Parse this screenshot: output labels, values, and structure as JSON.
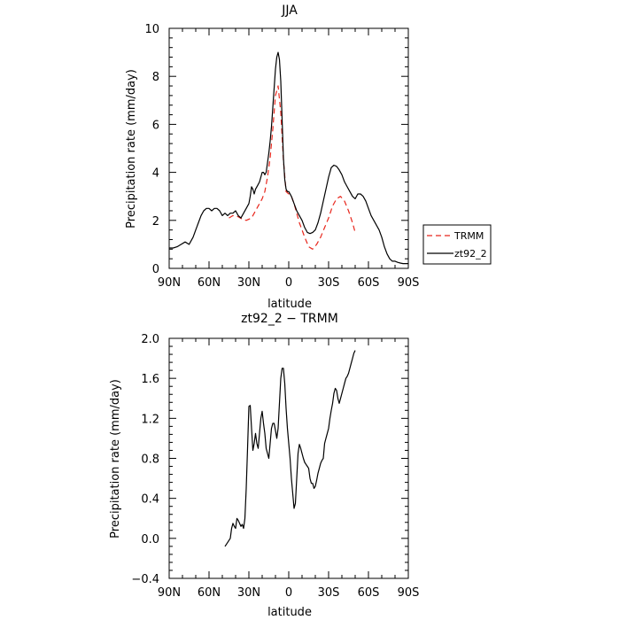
{
  "chart_data": [
    {
      "type": "line",
      "title": "JJA",
      "xlabel": "latitude",
      "ylabel": "Precipitation rate (mm/day)",
      "xlim": [
        90,
        -90
      ],
      "ylim": [
        0,
        10
      ],
      "x_ticks": [
        90,
        60,
        30,
        0,
        -30,
        -60,
        -90
      ],
      "x_tick_labels": [
        "90N",
        "60N",
        "30N",
        "0",
        "30S",
        "60S",
        "90S"
      ],
      "y_ticks": [
        0,
        2,
        4,
        6,
        8,
        10
      ],
      "y_tick_labels": [
        "0",
        "2",
        "4",
        "6",
        "8",
        "10"
      ],
      "grid": false,
      "legend": "outside-right",
      "series": [
        {
          "name": "TRMM",
          "color": "#e8261c",
          "dash": "dashed",
          "x": [
            45,
            42,
            38,
            35,
            32,
            28,
            25,
            22,
            20,
            18,
            16,
            14,
            12,
            10,
            8,
            6,
            4,
            2,
            0,
            -2,
            -4,
            -6,
            -8,
            -10,
            -12,
            -15,
            -18,
            -21,
            -24,
            -27,
            -30,
            -33,
            -36,
            -39,
            -42,
            -45,
            -48,
            -50
          ],
          "y": [
            2.1,
            2.2,
            2.15,
            2.05,
            2.0,
            2.1,
            2.4,
            2.7,
            2.9,
            3.2,
            3.8,
            4.6,
            5.8,
            7.2,
            7.6,
            6.5,
            4.5,
            3.2,
            3.1,
            3.0,
            2.7,
            2.3,
            1.9,
            1.6,
            1.3,
            0.9,
            0.8,
            1.0,
            1.3,
            1.7,
            2.1,
            2.6,
            2.9,
            3.0,
            2.8,
            2.4,
            1.9,
            1.5
          ]
        },
        {
          "name": "zt92_2",
          "color": "#000000",
          "dash": "solid",
          "x": [
            90,
            87,
            84,
            81,
            78,
            75,
            72,
            70,
            68,
            66,
            64,
            62,
            60,
            58,
            56,
            54,
            52,
            50,
            48,
            46,
            44,
            42,
            40,
            38,
            36,
            34,
            32,
            30,
            29,
            28,
            27,
            26,
            25,
            24,
            23,
            22,
            21,
            20,
            19,
            18,
            17,
            16,
            15,
            14,
            13,
            12,
            11,
            10,
            9,
            8,
            7,
            6,
            5,
            4,
            3,
            2,
            1,
            0,
            -2,
            -4,
            -6,
            -8,
            -10,
            -12,
            -14,
            -16,
            -18,
            -20,
            -22,
            -24,
            -26,
            -28,
            -30,
            -32,
            -34,
            -36,
            -38,
            -40,
            -42,
            -44,
            -46,
            -48,
            -50,
            -52,
            -54,
            -56,
            -58,
            -60,
            -62,
            -64,
            -66,
            -68,
            -70,
            -72,
            -74,
            -76,
            -78,
            -80,
            -82,
            -84,
            -86,
            -88,
            -90
          ],
          "y": [
            0.85,
            0.85,
            0.9,
            1.0,
            1.1,
            1.0,
            1.3,
            1.6,
            1.9,
            2.2,
            2.4,
            2.5,
            2.5,
            2.4,
            2.5,
            2.5,
            2.4,
            2.2,
            2.3,
            2.2,
            2.3,
            2.3,
            2.4,
            2.2,
            2.1,
            2.3,
            2.5,
            2.7,
            3.0,
            3.4,
            3.3,
            3.1,
            3.3,
            3.4,
            3.5,
            3.6,
            3.8,
            4.0,
            4.0,
            3.9,
            4.0,
            4.4,
            4.8,
            5.3,
            5.9,
            6.7,
            7.5,
            8.3,
            8.8,
            9.0,
            8.7,
            7.8,
            6.2,
            4.6,
            3.7,
            3.3,
            3.2,
            3.2,
            3.0,
            2.7,
            2.4,
            2.2,
            2.0,
            1.7,
            1.5,
            1.45,
            1.5,
            1.6,
            1.9,
            2.3,
            2.8,
            3.3,
            3.8,
            4.2,
            4.3,
            4.25,
            4.1,
            3.9,
            3.6,
            3.4,
            3.2,
            3.0,
            2.9,
            3.1,
            3.1,
            3.0,
            2.8,
            2.5,
            2.2,
            2.0,
            1.8,
            1.6,
            1.3,
            0.9,
            0.6,
            0.4,
            0.3,
            0.3,
            0.25,
            0.22,
            0.2,
            0.2,
            0.2
          ]
        }
      ]
    },
    {
      "type": "line",
      "title": "zt92_2 − TRMM",
      "xlabel": "latitude",
      "ylabel": "Precipitation rate (mm/day)",
      "xlim": [
        90,
        -90
      ],
      "ylim": [
        -0.4,
        2.0
      ],
      "x_ticks": [
        90,
        60,
        30,
        0,
        -30,
        -60,
        -90
      ],
      "x_tick_labels": [
        "90N",
        "60N",
        "30N",
        "0",
        "30S",
        "60S",
        "90S"
      ],
      "y_ticks": [
        -0.4,
        0.0,
        0.4,
        0.8,
        1.2,
        1.6,
        2.0
      ],
      "y_tick_labels": [
        "−0.4",
        "0.0",
        "0.4",
        "0.8",
        "1.2",
        "1.6",
        "2.0"
      ],
      "grid": false,
      "series": [
        {
          "color": "#000000",
          "dash": "solid",
          "x": [
            48,
            46,
            44,
            43,
            42,
            41,
            40,
            39,
            38,
            37,
            36,
            35,
            34,
            33,
            32,
            31,
            30,
            29,
            28,
            27,
            26,
            25,
            24,
            23,
            22,
            21,
            20,
            19,
            18,
            17,
            16,
            15,
            14,
            13,
            12,
            11,
            10,
            9,
            8,
            7,
            6,
            5,
            4,
            3,
            2,
            1,
            0,
            -1,
            -2,
            -3,
            -4,
            -5,
            -6,
            -7,
            -8,
            -9,
            -10,
            -11,
            -12,
            -13,
            -14,
            -15,
            -16,
            -17,
            -18,
            -19,
            -20,
            -21,
            -22,
            -23,
            -24,
            -25,
            -26,
            -27,
            -28,
            -29,
            -30,
            -31,
            -32,
            -33,
            -34,
            -35,
            -36,
            -37,
            -38,
            -39,
            -40,
            -41,
            -42,
            -43,
            -44,
            -45,
            -46,
            -47,
            -48,
            -49,
            -50
          ],
          "y": [
            -0.08,
            -0.04,
            0.0,
            0.1,
            0.15,
            0.12,
            0.1,
            0.2,
            0.18,
            0.15,
            0.12,
            0.14,
            0.1,
            0.2,
            0.5,
            0.9,
            1.32,
            1.33,
            1.1,
            0.88,
            0.95,
            1.05,
            0.95,
            0.9,
            1.05,
            1.2,
            1.27,
            1.15,
            1.05,
            0.9,
            0.85,
            0.8,
            0.95,
            1.1,
            1.15,
            1.15,
            1.08,
            1.0,
            1.1,
            1.35,
            1.6,
            1.7,
            1.7,
            1.55,
            1.3,
            1.1,
            0.95,
            0.8,
            0.6,
            0.45,
            0.3,
            0.35,
            0.6,
            0.85,
            0.94,
            0.9,
            0.85,
            0.8,
            0.76,
            0.74,
            0.72,
            0.7,
            0.6,
            0.55,
            0.55,
            0.5,
            0.52,
            0.58,
            0.65,
            0.7,
            0.75,
            0.78,
            0.8,
            0.95,
            1.0,
            1.05,
            1.1,
            1.2,
            1.28,
            1.35,
            1.45,
            1.5,
            1.48,
            1.4,
            1.35,
            1.4,
            1.45,
            1.5,
            1.55,
            1.6,
            1.62,
            1.65,
            1.7,
            1.75,
            1.8,
            1.85,
            1.88
          ]
        }
      ]
    }
  ]
}
